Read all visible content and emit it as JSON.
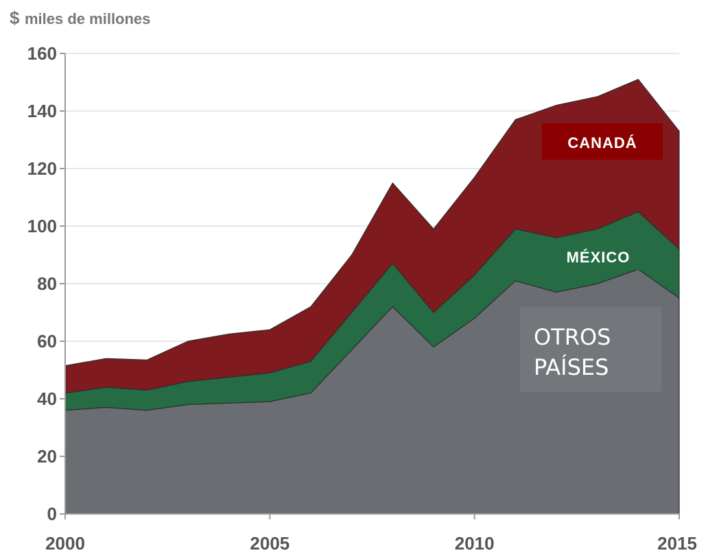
{
  "chart_data": {
    "type": "area",
    "stacked": true,
    "unit_prefix": "$",
    "unit_label": "miles de millones",
    "x": [
      2000,
      2001,
      2002,
      2003,
      2004,
      2005,
      2006,
      2007,
      2008,
      2009,
      2010,
      2011,
      2012,
      2013,
      2014,
      2015
    ],
    "x_ticks": [
      "2000",
      "2005",
      "2010",
      "2015"
    ],
    "y_ticks": [
      "0",
      "20",
      "40",
      "60",
      "80",
      "100",
      "120",
      "140",
      "160"
    ],
    "xlim": [
      2000,
      2015
    ],
    "ylim": [
      0,
      160
    ],
    "grid": "horizontal",
    "series": [
      {
        "name": "OTROS PAÍSES",
        "color": "#6a6e73",
        "values": [
          36,
          37,
          36,
          38,
          38.5,
          39,
          42,
          57,
          72,
          58,
          68,
          81,
          77,
          80,
          85,
          75
        ]
      },
      {
        "name": "MÉXICO",
        "color": "#256b43",
        "values": [
          6,
          7,
          7,
          8,
          9,
          10,
          11,
          13,
          15,
          12,
          15,
          18,
          19,
          19,
          20,
          17
        ]
      },
      {
        "name": "CANADÁ",
        "color": "#7f1a1e",
        "values": [
          9.5,
          10,
          10.5,
          14,
          15,
          15,
          19,
          20,
          28,
          29,
          34,
          38,
          46,
          46,
          46,
          41
        ]
      }
    ]
  }
}
